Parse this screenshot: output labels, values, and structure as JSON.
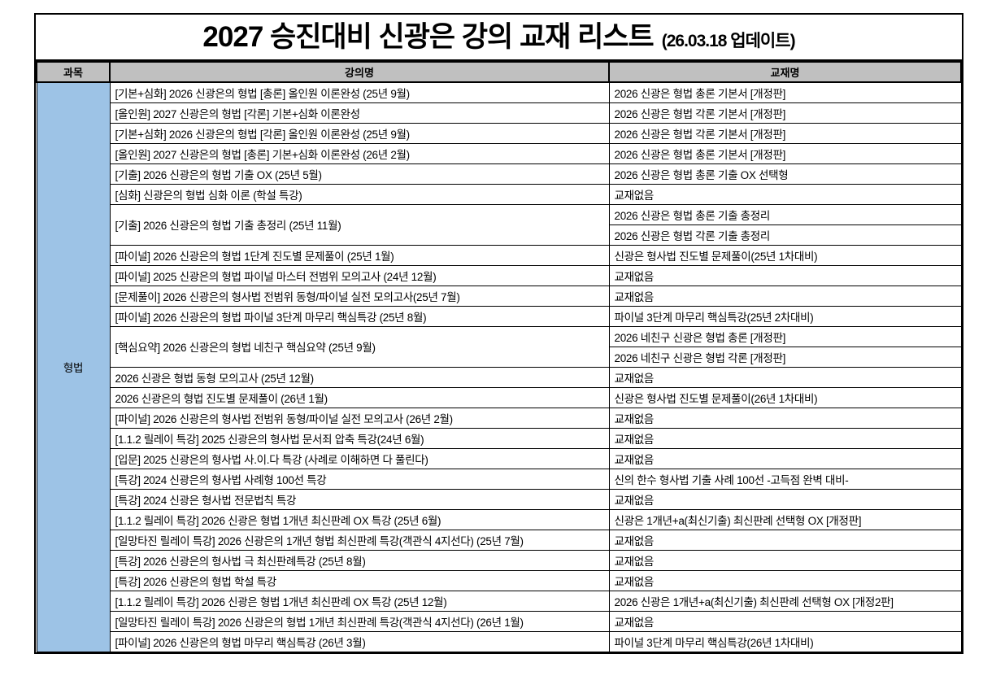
{
  "title": {
    "main": "2027 승진대비 신광은 강의 교재 리스트",
    "update": "(26.03.18 업데이트)"
  },
  "header": {
    "subject": "과목",
    "lecture": "강의명",
    "book": "교재명"
  },
  "subject_label": "형법",
  "colors": {
    "header_bg": "#c0c0c0",
    "subject_bg": "#9dc3e6",
    "border": "#000000",
    "page_bg": "#ffffff"
  },
  "rows": [
    {
      "lecture": "[기본+심화] 2026 신광은의 형법 [총론] 올인원 이론완성 (25년 9월)",
      "books": [
        "2026 신광은 형법 총론 기본서 [개정판]"
      ]
    },
    {
      "lecture": "[올인원] 2027 신광은의 형법 [각론] 기본+심화 이론완성",
      "books": [
        "2026 신광은 형법 각론 기본서 [개정판]"
      ]
    },
    {
      "lecture": "[기본+심화] 2026 신광은의 형법 [각론] 올인원 이론완성 (25년 9월)",
      "books": [
        "2026 신광은 형법 각론 기본서 [개정판]"
      ]
    },
    {
      "lecture": "[올인원] 2027 신광은의 형법 [총론] 기본+심화 이론완성 (26년 2월)",
      "books": [
        "2026 신광은 형법 총론 기본서 [개정판]"
      ]
    },
    {
      "lecture": "[기출] 2026 신광은의 형법 기출 OX (25년 5월)",
      "books": [
        "2026 신광은 형법 총론 기출 OX 선택형"
      ]
    },
    {
      "lecture": "[심화] 신광은의 형법 심화 이론 (학설 특강)",
      "books": [
        "교재없음"
      ]
    },
    {
      "lecture": "[기출] 2026 신광은의 형법 기출 총정리 (25년 11월)",
      "books": [
        "2026 신광은 형법 총론 기출 총정리",
        "2026 신광은 형법 각론 기출 총정리"
      ]
    },
    {
      "lecture": "[파이널] 2026 신광은의 형법 1단계 진도별 문제풀이 (25년 1월)",
      "books": [
        "신광은 형사법 진도별 문제풀이(25년 1차대비)"
      ]
    },
    {
      "lecture": "[파이널] 2025 신광은의 형법 파이널 마스터 전범위 모의고사 (24년 12월)",
      "books": [
        "교재없음"
      ]
    },
    {
      "lecture": "[문제풀이] 2026 신광은의 형사법 전범위 동형/파이널 실전 모의고사(25년 7월)",
      "books": [
        "교재없음"
      ]
    },
    {
      "lecture": "[파이널] 2026 신광은의 형법 파이널 3단계 마무리 핵심특강 (25년 8월)",
      "books": [
        "파이널 3단계 마무리 핵심특강(25년 2차대비)"
      ]
    },
    {
      "lecture": "[핵심요약] 2026 신광은의 형법 네친구 핵심요약 (25년 9월)",
      "books": [
        "2026 네친구 신광은 형법 총론 [개정판]",
        "2026 네친구 신광은 형법 각론 [개정판]"
      ]
    },
    {
      "lecture": "2026 신광은 형법 동형 모의고사 (25년 12월)",
      "books": [
        "교재없음"
      ]
    },
    {
      "lecture": "2026 신광은의 형법 진도별 문제풀이 (26년 1월)",
      "books": [
        "신광은 형사법 진도별 문제풀이(26년 1차대비)"
      ]
    },
    {
      "lecture": "[파이널] 2026 신광은의 형사법 전범위 동형/파이널 실전 모의고사 (26년 2월)",
      "books": [
        "교재없음"
      ]
    },
    {
      "lecture": "[1.1.2 릴레이 특강] 2025 신광은의 형사법 문서죄 압축 특강(24년 6월)",
      "books": [
        "교재없음"
      ]
    },
    {
      "lecture": "[입문] 2025 신광은의 형사법 사.이.다 특강 (사례로 이해하면 다 풀린다)",
      "books": [
        "교재없음"
      ]
    },
    {
      "lecture": "[특강] 2024 신광은의 형사법 사례형 100선 특강",
      "books": [
        "신의 한수 형사법 기출 사례 100선 -고득점 완벽 대비-"
      ]
    },
    {
      "lecture": "[특강] 2024 신광은 형사법 전문법칙 특강",
      "books": [
        "교재없음"
      ]
    },
    {
      "lecture": "[1.1.2 릴레이 특강] 2026 신광은 형법 1개년 최신판례 OX 특강 (25년 6월)",
      "books": [
        "신광은 1개년+a(최신기출) 최신판례 선택형 OX [개정판]"
      ]
    },
    {
      "lecture": "[일망타진 릴레이 특강] 2026 신광은의 1개년 형법 최신판례 특강(객관식 4지선다) (25년 7월)",
      "books": [
        "교재없음"
      ]
    },
    {
      "lecture": "[특강] 2026 신광은의 형사법 극 최신판례특강 (25년 8월)",
      "books": [
        "교재없음"
      ]
    },
    {
      "lecture": "[특강] 2026 신광은의 형법 학설 특강",
      "books": [
        "교재없음"
      ]
    },
    {
      "lecture": "[1.1.2 릴레이 특강] 2026 신광은 형법 1개년 최신판례 OX 특강 (25년 12월)",
      "books": [
        "2026 신광은 1개년+a(최신기출) 최신판례 선택형 OX [개정2판]"
      ]
    },
    {
      "lecture": "[일망타진 릴레이 특강] 2026 신광은의 형법 1개년 최신판례 특강(객관식 4지선다) (26년 1월)",
      "books": [
        "교재없음"
      ]
    },
    {
      "lecture": "[파이널] 2026 신광은의 형법 마무리 핵심특강 (26년 3월)",
      "books": [
        "파이널 3단계 마무리 핵심특강(26년 1차대비)"
      ]
    }
  ]
}
